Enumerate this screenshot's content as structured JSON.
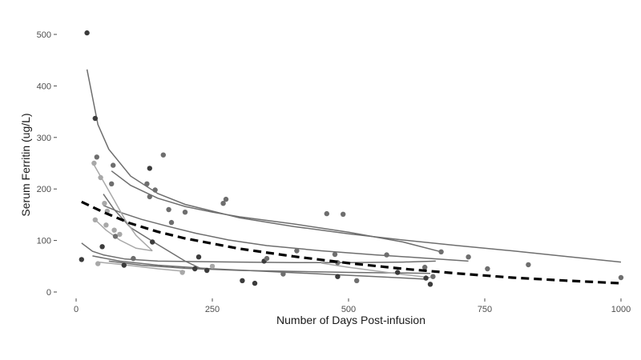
{
  "chart_data": {
    "type": "scatter",
    "xlabel": "Number of Days Post-infusion",
    "ylabel": "Serum Ferritin (ug/L)",
    "xlim": [
      -20,
      1010
    ],
    "ylim": [
      -15,
      520
    ],
    "x_ticks": [
      0,
      250,
      500,
      750,
      1000
    ],
    "y_ticks": [
      0,
      100,
      200,
      300,
      400,
      500
    ],
    "grid": false,
    "legend": "none",
    "colors": {
      "point_dark": "#3c3c3c",
      "point_mid": "#6e6e6e",
      "point_light": "#a8a8a8",
      "curve": "#6e6e6e",
      "curve_light": "#a8a8a8",
      "overall_trend": "#000000",
      "axis_text": "#4d4d4d"
    },
    "points": [
      {
        "x": 20,
        "y": 503,
        "shade": "dark"
      },
      {
        "x": 35,
        "y": 337,
        "shade": "dark"
      },
      {
        "x": 38,
        "y": 262,
        "shade": "mid"
      },
      {
        "x": 33,
        "y": 250,
        "shade": "light"
      },
      {
        "x": 45,
        "y": 222,
        "shade": "light"
      },
      {
        "x": 52,
        "y": 172,
        "shade": "light"
      },
      {
        "x": 57,
        "y": 157,
        "shade": "light"
      },
      {
        "x": 35,
        "y": 140,
        "shade": "light"
      },
      {
        "x": 55,
        "y": 130,
        "shade": "light"
      },
      {
        "x": 70,
        "y": 120,
        "shade": "light"
      },
      {
        "x": 72,
        "y": 108,
        "shade": "mid"
      },
      {
        "x": 80,
        "y": 112,
        "shade": "light"
      },
      {
        "x": 68,
        "y": 246,
        "shade": "mid"
      },
      {
        "x": 65,
        "y": 210,
        "shade": "mid"
      },
      {
        "x": 135,
        "y": 240,
        "shade": "dark"
      },
      {
        "x": 130,
        "y": 210,
        "shade": "mid"
      },
      {
        "x": 145,
        "y": 198,
        "shade": "mid"
      },
      {
        "x": 135,
        "y": 185,
        "shade": "mid"
      },
      {
        "x": 160,
        "y": 266,
        "shade": "mid"
      },
      {
        "x": 170,
        "y": 160,
        "shade": "mid"
      },
      {
        "x": 175,
        "y": 135,
        "shade": "mid"
      },
      {
        "x": 200,
        "y": 155,
        "shade": "mid"
      },
      {
        "x": 275,
        "y": 180,
        "shade": "mid"
      },
      {
        "x": 270,
        "y": 172,
        "shade": "mid"
      },
      {
        "x": 140,
        "y": 97,
        "shade": "dark"
      },
      {
        "x": 105,
        "y": 65,
        "shade": "mid"
      },
      {
        "x": 48,
        "y": 88,
        "shade": "dark"
      },
      {
        "x": 10,
        "y": 63,
        "shade": "dark"
      },
      {
        "x": 40,
        "y": 55,
        "shade": "light"
      },
      {
        "x": 88,
        "y": 52,
        "shade": "dark"
      },
      {
        "x": 195,
        "y": 38,
        "shade": "light"
      },
      {
        "x": 218,
        "y": 45,
        "shade": "dark"
      },
      {
        "x": 225,
        "y": 68,
        "shade": "dark"
      },
      {
        "x": 250,
        "y": 50,
        "shade": "light"
      },
      {
        "x": 240,
        "y": 42,
        "shade": "dark"
      },
      {
        "x": 305,
        "y": 22,
        "shade": "dark"
      },
      {
        "x": 328,
        "y": 17,
        "shade": "dark"
      },
      {
        "x": 345,
        "y": 60,
        "shade": "dark"
      },
      {
        "x": 350,
        "y": 65,
        "shade": "mid"
      },
      {
        "x": 380,
        "y": 35,
        "shade": "mid"
      },
      {
        "x": 405,
        "y": 80,
        "shade": "mid"
      },
      {
        "x": 460,
        "y": 152,
        "shade": "mid"
      },
      {
        "x": 490,
        "y": 151,
        "shade": "mid"
      },
      {
        "x": 475,
        "y": 73,
        "shade": "mid"
      },
      {
        "x": 480,
        "y": 57,
        "shade": "mid"
      },
      {
        "x": 480,
        "y": 30,
        "shade": "dark"
      },
      {
        "x": 515,
        "y": 22,
        "shade": "mid"
      },
      {
        "x": 570,
        "y": 72,
        "shade": "mid"
      },
      {
        "x": 590,
        "y": 38,
        "shade": "dark"
      },
      {
        "x": 640,
        "y": 48,
        "shade": "mid"
      },
      {
        "x": 642,
        "y": 27,
        "shade": "dark"
      },
      {
        "x": 650,
        "y": 15,
        "shade": "dark"
      },
      {
        "x": 655,
        "y": 30,
        "shade": "mid"
      },
      {
        "x": 670,
        "y": 78,
        "shade": "mid"
      },
      {
        "x": 720,
        "y": 68,
        "shade": "mid"
      },
      {
        "x": 755,
        "y": 45,
        "shade": "mid"
      },
      {
        "x": 830,
        "y": 53,
        "shade": "mid"
      },
      {
        "x": 1000,
        "y": 28,
        "shade": "mid"
      }
    ],
    "curves": [
      {
        "shade": "mid",
        "x": [
          20,
          40,
          60,
          100,
          150,
          200,
          300,
          400,
          500,
          600,
          700,
          800,
          900,
          1000
        ],
        "y": [
          432,
          325,
          277,
          225,
          191,
          170,
          144,
          127,
          113,
          101,
          90,
          80,
          69,
          58
        ]
      },
      {
        "shade": "mid",
        "x": [
          65,
          100,
          150,
          200,
          250,
          300,
          400,
          500,
          600,
          670
        ],
        "y": [
          235,
          207,
          182,
          166,
          155,
          146,
          132,
          116,
          97,
          78
        ]
      },
      {
        "shade": "mid",
        "x": [
          50,
          80,
          120,
          170,
          220,
          280,
          350,
          450,
          550,
          650,
          720
        ],
        "y": [
          168,
          155,
          141,
          127,
          114,
          101,
          90,
          80,
          72,
          65,
          60
        ]
      },
      {
        "shade": "mid",
        "x": [
          50,
          70,
          100,
          150,
          200,
          230
        ],
        "y": [
          190,
          160,
          125,
          92,
          60,
          45
        ]
      },
      {
        "shade": "light",
        "x": [
          30,
          50,
          70,
          90,
          110,
          140
        ],
        "y": [
          252,
          215,
          178,
          140,
          110,
          80
        ]
      },
      {
        "shade": "light",
        "x": [
          35,
          55,
          80,
          110,
          140
        ],
        "y": [
          140,
          120,
          101,
          85,
          80
        ]
      },
      {
        "shade": "mid",
        "x": [
          10,
          30,
          50,
          90,
          150,
          220,
          300,
          400,
          500,
          600,
          660
        ],
        "y": [
          95,
          79,
          72,
          64,
          60,
          59,
          58,
          57,
          57,
          58,
          60
        ]
      },
      {
        "shade": "mid",
        "x": [
          30,
          80,
          150,
          250,
          350,
          450,
          550,
          640
        ],
        "y": [
          70,
          60,
          52,
          45,
          40,
          35,
          30,
          25
        ]
      },
      {
        "shade": "mid",
        "x": [
          60,
          120,
          200,
          300,
          400,
          500,
          600,
          650
        ],
        "y": [
          60,
          52,
          46,
          42,
          40,
          38,
          37,
          36
        ]
      },
      {
        "shade": "light",
        "x": [
          40,
          70,
          110,
          150,
          200
        ],
        "y": [
          58,
          55,
          50,
          45,
          40
        ]
      },
      {
        "shade": "light",
        "x": [
          450,
          500,
          550,
          600,
          650
        ],
        "y": [
          56,
          48,
          41,
          34,
          28
        ]
      }
    ],
    "overall_trend": {
      "x": [
        10,
        50,
        100,
        150,
        200,
        300,
        400,
        500,
        600,
        700,
        800,
        900,
        1000
      ],
      "y": [
        175,
        155,
        133,
        117,
        104,
        84,
        69,
        56,
        45,
        36,
        28,
        22,
        17
      ]
    }
  }
}
